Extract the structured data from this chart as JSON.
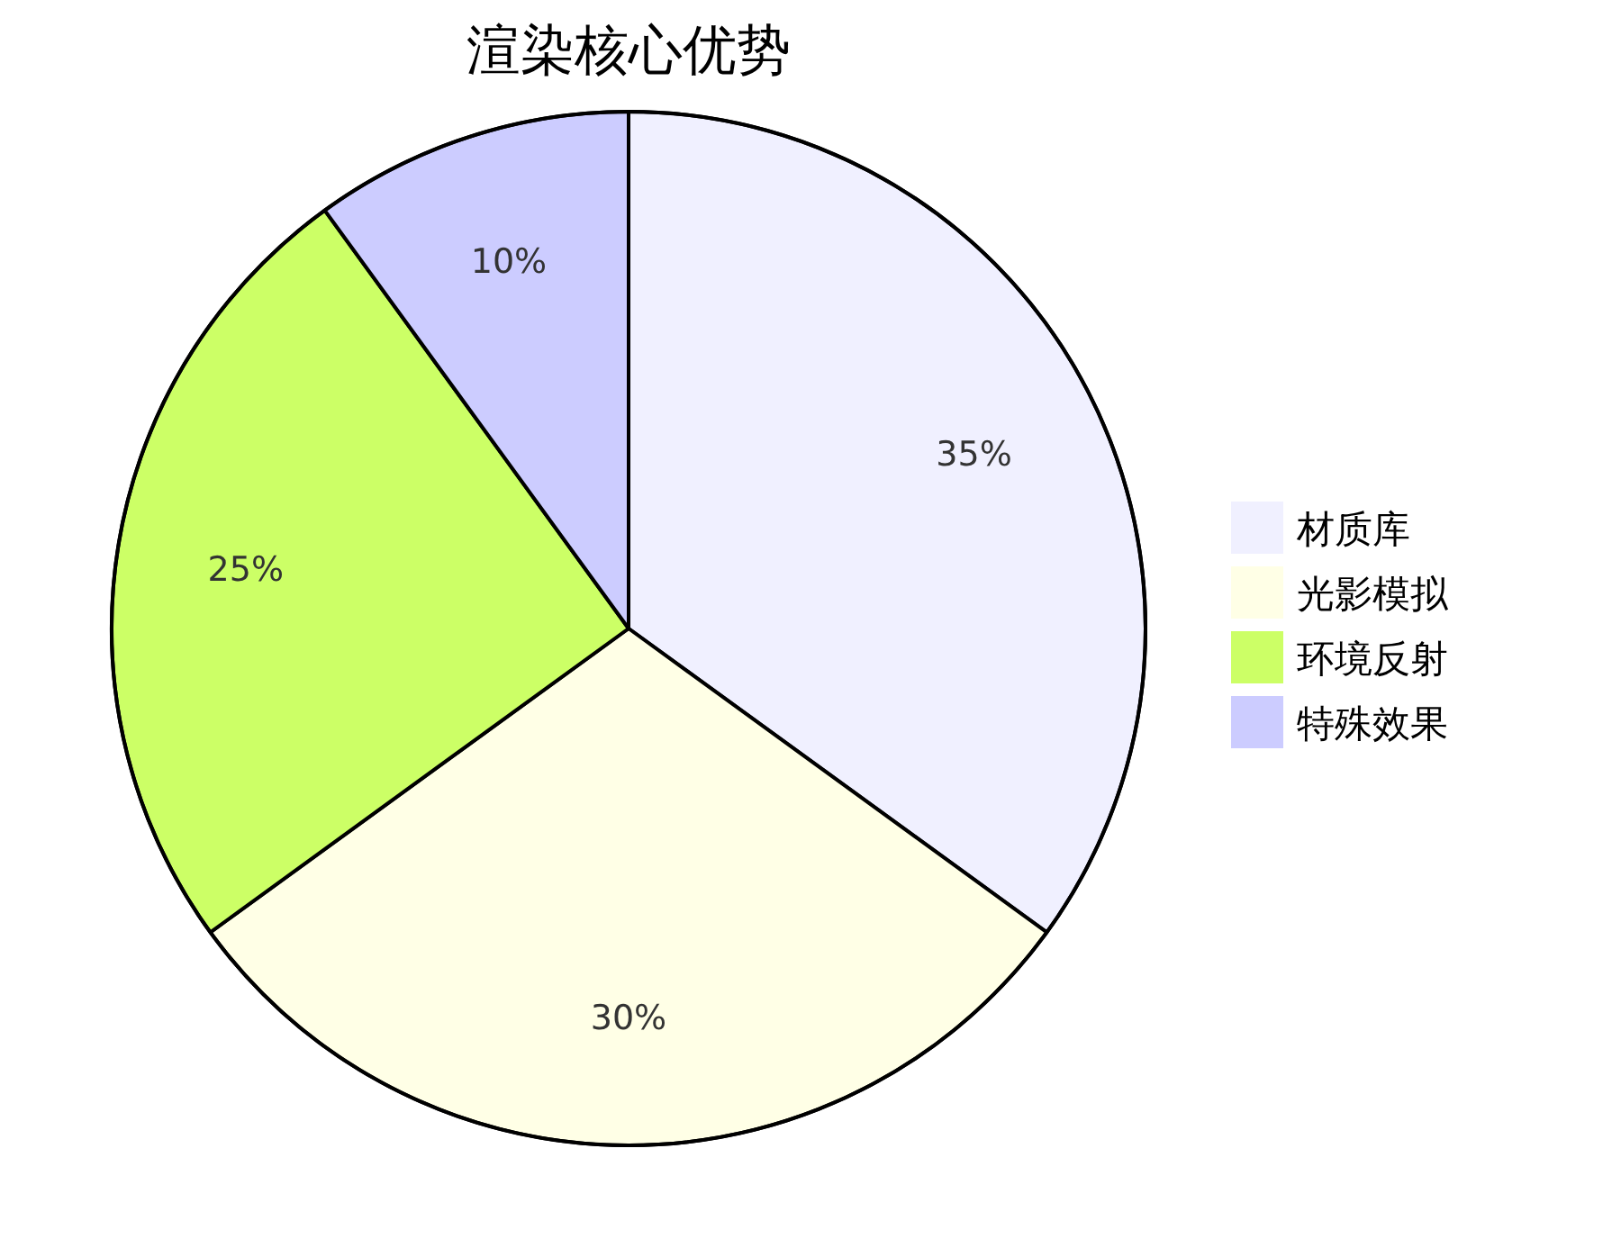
{
  "chart_data": {
    "type": "pie",
    "title": "渲染核心优势",
    "categories": [
      "材质库",
      "光影模拟",
      "环境反射",
      "特殊效果"
    ],
    "values": [
      35,
      30,
      25,
      10
    ],
    "colors": [
      "#f0f0ff",
      "#ffffe6",
      "#ccff66",
      "#ccccff"
    ],
    "value_labels": [
      "35%",
      "30%",
      "25%",
      "10%"
    ],
    "legend": "right"
  }
}
